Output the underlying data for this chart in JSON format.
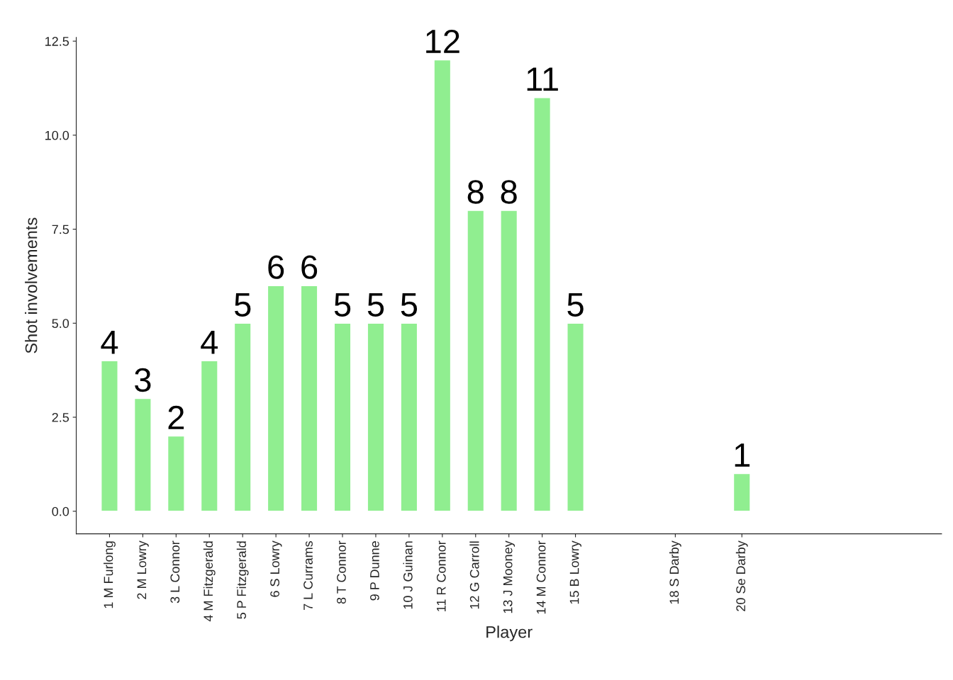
{
  "chart_data": {
    "type": "bar",
    "xlabel": "Player",
    "ylabel": "Shot involvements",
    "categories": [
      "1 M Furlong",
      "2 M Lowry",
      "3 L Connor",
      "4 M Fitzgerald",
      "5 P Fitzgerald",
      "6 S Lowry",
      "7 L Currams",
      "8 T Connor",
      "9 P Dunne",
      "10 J Guinan",
      "11 R Connor",
      "12 G Carroll",
      "13 J Mooney",
      "14 M Connor",
      "15 B Lowry",
      null,
      null,
      "18 S Darby",
      null,
      "20 Se Darby",
      null,
      null,
      null,
      null,
      null
    ],
    "values": [
      4,
      3,
      2,
      4,
      5,
      6,
      6,
      5,
      5,
      5,
      12,
      8,
      8,
      11,
      5,
      null,
      null,
      null,
      null,
      1,
      null,
      null,
      null,
      null,
      null
    ],
    "color": "#90ee90",
    "data_labels": true,
    "grid": false,
    "legend": false,
    "ylim": [
      -0.6,
      12.6
    ],
    "yticks": [
      {
        "value": 0,
        "label": "0.0"
      },
      2.5,
      {
        "value": 5,
        "label": "5.0"
      },
      7.5,
      {
        "value": 10,
        "label": "10.0"
      },
      12.5
    ]
  }
}
